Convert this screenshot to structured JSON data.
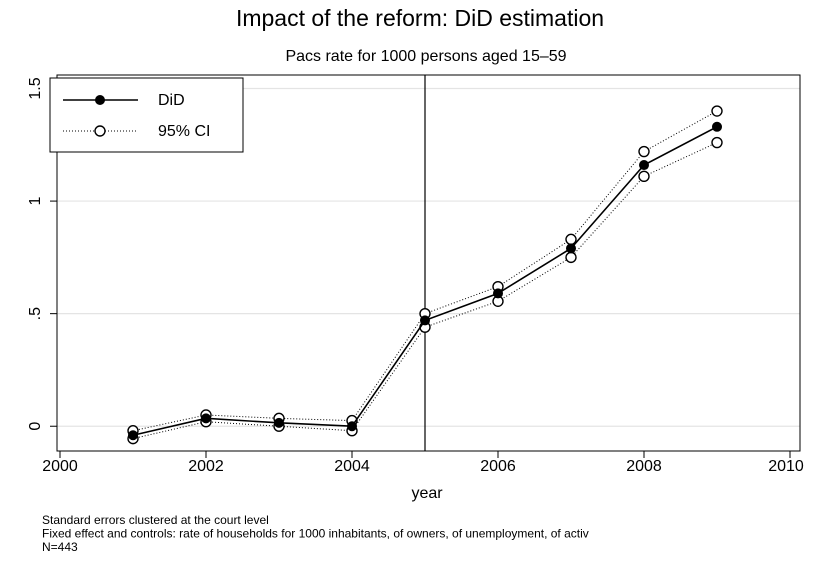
{
  "chart_data": {
    "type": "line",
    "title": "Impact of the reform: DiD estimation",
    "subtitle": "Pacs rate for 1000 persons aged 15–59",
    "x_label": "year",
    "x": [
      2001,
      2002,
      2003,
      2004,
      2005,
      2006,
      2007,
      2008,
      2009
    ],
    "series": [
      {
        "name": "DiD",
        "color": "#000000",
        "values": [
          -0.04,
          0.035,
          0.015,
          0.0,
          0.47,
          0.59,
          0.79,
          1.16,
          1.33
        ]
      }
    ],
    "ci": {
      "name": "95% CI",
      "color": "#000000",
      "upper": [
        -0.02,
        0.05,
        0.035,
        0.025,
        0.5,
        0.62,
        0.83,
        1.22,
        1.4
      ],
      "lower": [
        -0.055,
        0.02,
        0.0,
        -0.02,
        0.44,
        0.555,
        0.75,
        1.11,
        1.26
      ]
    },
    "vline": 2005,
    "xlim": [
      2000,
      2010
    ],
    "xticks": [
      2000,
      2002,
      2004,
      2006,
      2008,
      2010
    ],
    "ylim": [
      -0.11,
      1.56
    ],
    "yticks": [
      0,
      {
        "value": 0.5,
        "label": ".5"
      },
      1,
      1.5
    ],
    "grid": true,
    "legend": "top-left",
    "notes": [
      "Standard errors clustered at the court level",
      "Fixed effect and controls: rate of households for 1000 inhabitants, of owners, of unemployment, of activ",
      "N=443"
    ]
  }
}
